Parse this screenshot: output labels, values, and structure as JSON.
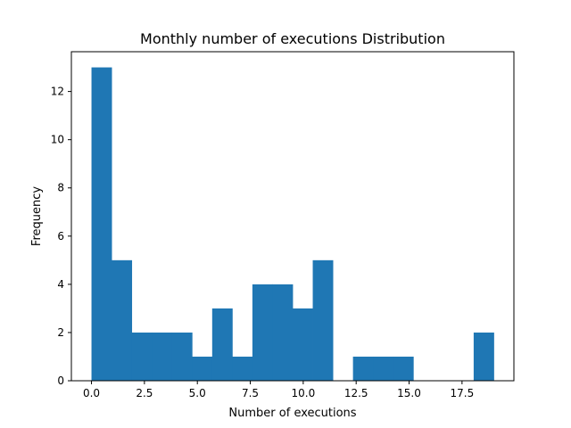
{
  "chart_data": {
    "type": "bar",
    "title": "Monthly number of executions Distribution",
    "xlabel": "Number of executions",
    "ylabel": "Frequency",
    "xlim": [
      -0.95,
      19.95
    ],
    "ylim": [
      0,
      13.65
    ],
    "bar_color": "#1f77b4",
    "bin_edges": [
      0,
      0.95,
      1.9,
      2.85,
      3.8,
      4.75,
      5.7,
      6.65,
      7.6,
      8.55,
      9.5,
      10.45,
      11.4,
      12.35,
      13.3,
      14.25,
      15.2,
      16.15,
      17.1,
      18.05,
      19.0
    ],
    "values": [
      13,
      5,
      2,
      2,
      2,
      1,
      3,
      1,
      4,
      4,
      3,
      5,
      0,
      1,
      1,
      1,
      0,
      0,
      0,
      2
    ],
    "x_ticks": [
      {
        "value": 0.0,
        "label": "0.0"
      },
      {
        "value": 2.5,
        "label": "2.5"
      },
      {
        "value": 5.0,
        "label": "5.0"
      },
      {
        "value": 7.5,
        "label": "7.5"
      },
      {
        "value": 10.0,
        "label": "10.0"
      },
      {
        "value": 12.5,
        "label": "12.5"
      },
      {
        "value": 15.0,
        "label": "15.0"
      },
      {
        "value": 17.5,
        "label": "17.5"
      }
    ],
    "y_ticks": [
      {
        "value": 0,
        "label": "0"
      },
      {
        "value": 2,
        "label": "2"
      },
      {
        "value": 4,
        "label": "4"
      },
      {
        "value": 6,
        "label": "6"
      },
      {
        "value": 8,
        "label": "8"
      },
      {
        "value": 10,
        "label": "10"
      },
      {
        "value": 12,
        "label": "12"
      }
    ],
    "grid": false
  }
}
